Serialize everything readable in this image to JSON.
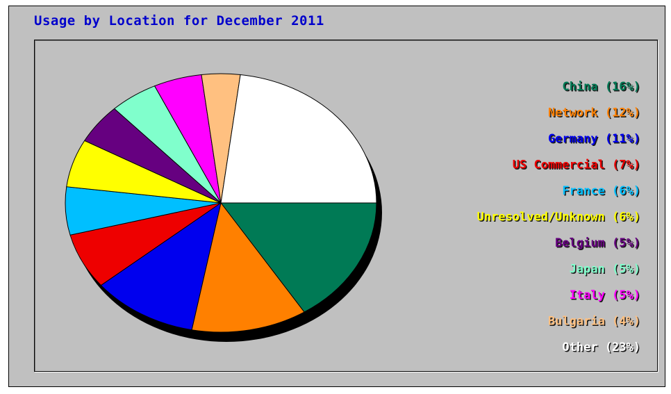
{
  "title": "Usage by Location for December 2011",
  "colors": {
    "title": "#0000cc",
    "panel": "#c0c0c0",
    "shadow": "#000000"
  },
  "chart_data": {
    "type": "pie",
    "title": "Usage by Location for December 2011",
    "legend_position": "right",
    "slices": [
      {
        "label": "China (16%)",
        "value": 16,
        "color": "#007a55"
      },
      {
        "label": "Network (12%)",
        "value": 12,
        "color": "#ff8000"
      },
      {
        "label": "Germany (11%)",
        "value": 11,
        "color": "#0000ee"
      },
      {
        "label": "US Commercial (7%)",
        "value": 7,
        "color": "#ee0000"
      },
      {
        "label": "France (6%)",
        "value": 6,
        "color": "#00bfff"
      },
      {
        "label": "Unresolved/Unknown (6%)",
        "value": 6,
        "color": "#ffff00"
      },
      {
        "label": "Belgium (5%)",
        "value": 5,
        "color": "#660080"
      },
      {
        "label": "Japan (5%)",
        "value": 5,
        "color": "#80ffcc"
      },
      {
        "label": "Italy (5%)",
        "value": 5,
        "color": "#ff00ff"
      },
      {
        "label": "Bulgaria (4%)",
        "value": 4,
        "color": "#ffc080"
      },
      {
        "label": "Other (23%)",
        "value": 23,
        "color": "#ffffff"
      }
    ]
  }
}
